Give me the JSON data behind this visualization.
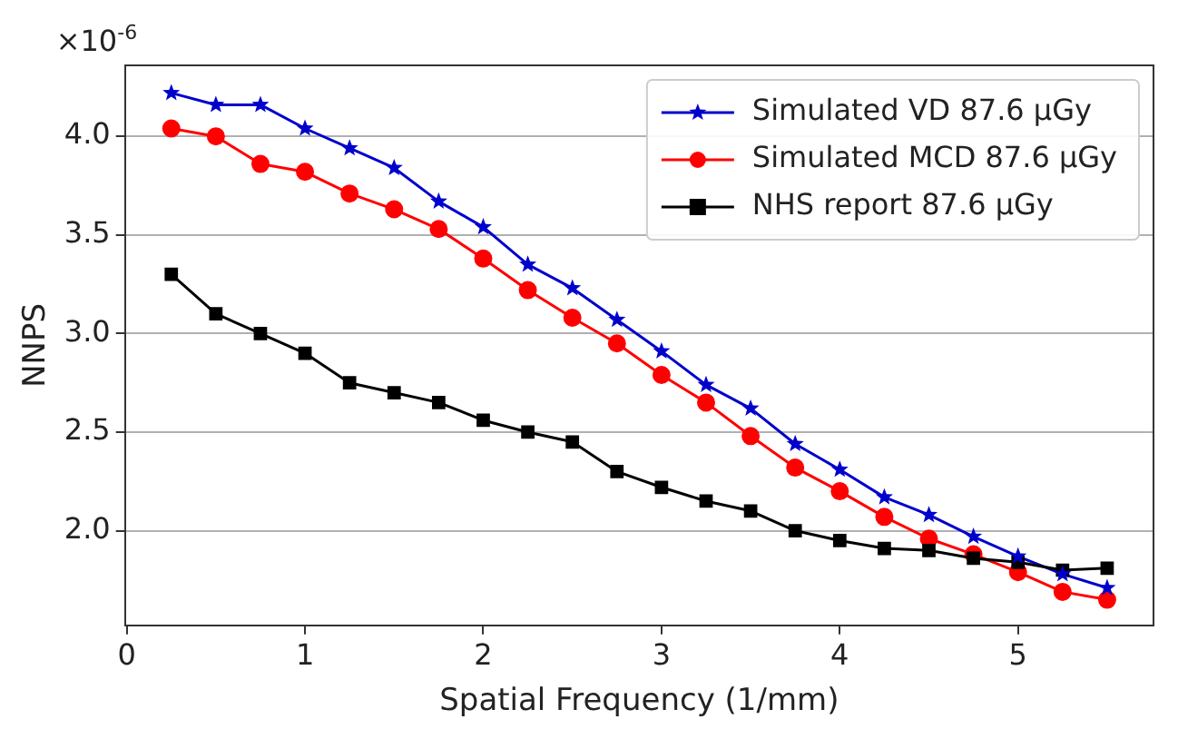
{
  "chart_data": {
    "type": "line",
    "xlabel": "Spatial Frequency (1/mm)",
    "ylabel": "NNPS",
    "annotations": [
      "×10$^{-6}$"
    ],
    "x": [
      0.25,
      0.5,
      0.75,
      1.0,
      1.25,
      1.5,
      1.75,
      2.0,
      2.25,
      2.5,
      2.75,
      3.0,
      3.25,
      3.5,
      3.75,
      4.0,
      4.25,
      4.5,
      4.75,
      5.0,
      5.25,
      5.5
    ],
    "series": [
      {
        "name": "Simulated VD 87.6 μGy",
        "color": "#0000cc",
        "marker": "star",
        "values": [
          4.22,
          4.16,
          4.16,
          4.04,
          3.94,
          3.84,
          3.67,
          3.54,
          3.35,
          3.23,
          3.07,
          2.91,
          2.74,
          2.62,
          2.44,
          2.31,
          2.17,
          2.08,
          1.97,
          1.87,
          1.78,
          1.71
        ]
      },
      {
        "name": "Simulated MCD 87.6 μGy",
        "color": "#ff0000",
        "marker": "circle",
        "values": [
          4.04,
          4.0,
          3.86,
          3.82,
          3.71,
          3.63,
          3.53,
          3.38,
          3.22,
          3.08,
          2.95,
          2.79,
          2.65,
          2.48,
          2.32,
          2.2,
          2.07,
          1.96,
          1.88,
          1.79,
          1.69,
          1.65
        ]
      },
      {
        "name": "NHS report 87.6 μGy",
        "color": "#000000",
        "marker": "square",
        "values": [
          3.3,
          3.1,
          3.0,
          2.9,
          2.75,
          2.7,
          2.65,
          2.56,
          2.5,
          2.45,
          2.3,
          2.22,
          2.15,
          2.1,
          2.0,
          1.95,
          1.91,
          1.9,
          1.86,
          1.84,
          1.8,
          1.81
        ]
      }
    ],
    "xlim": [
      -0.01,
      5.76
    ],
    "ylim": [
      1.52,
      4.36
    ],
    "xticks": [
      0,
      1,
      2,
      3,
      4,
      5
    ],
    "yticks": [
      {
        "value": 2,
        "label": "2.0"
      },
      {
        "value": 2.5,
        "label": "2.5"
      },
      {
        "value": 3,
        "label": "3.0"
      },
      {
        "value": 3.5,
        "label": "3.5"
      },
      {
        "value": 4,
        "label": "4.0"
      }
    ],
    "grid": "y",
    "legend": "top right"
  }
}
